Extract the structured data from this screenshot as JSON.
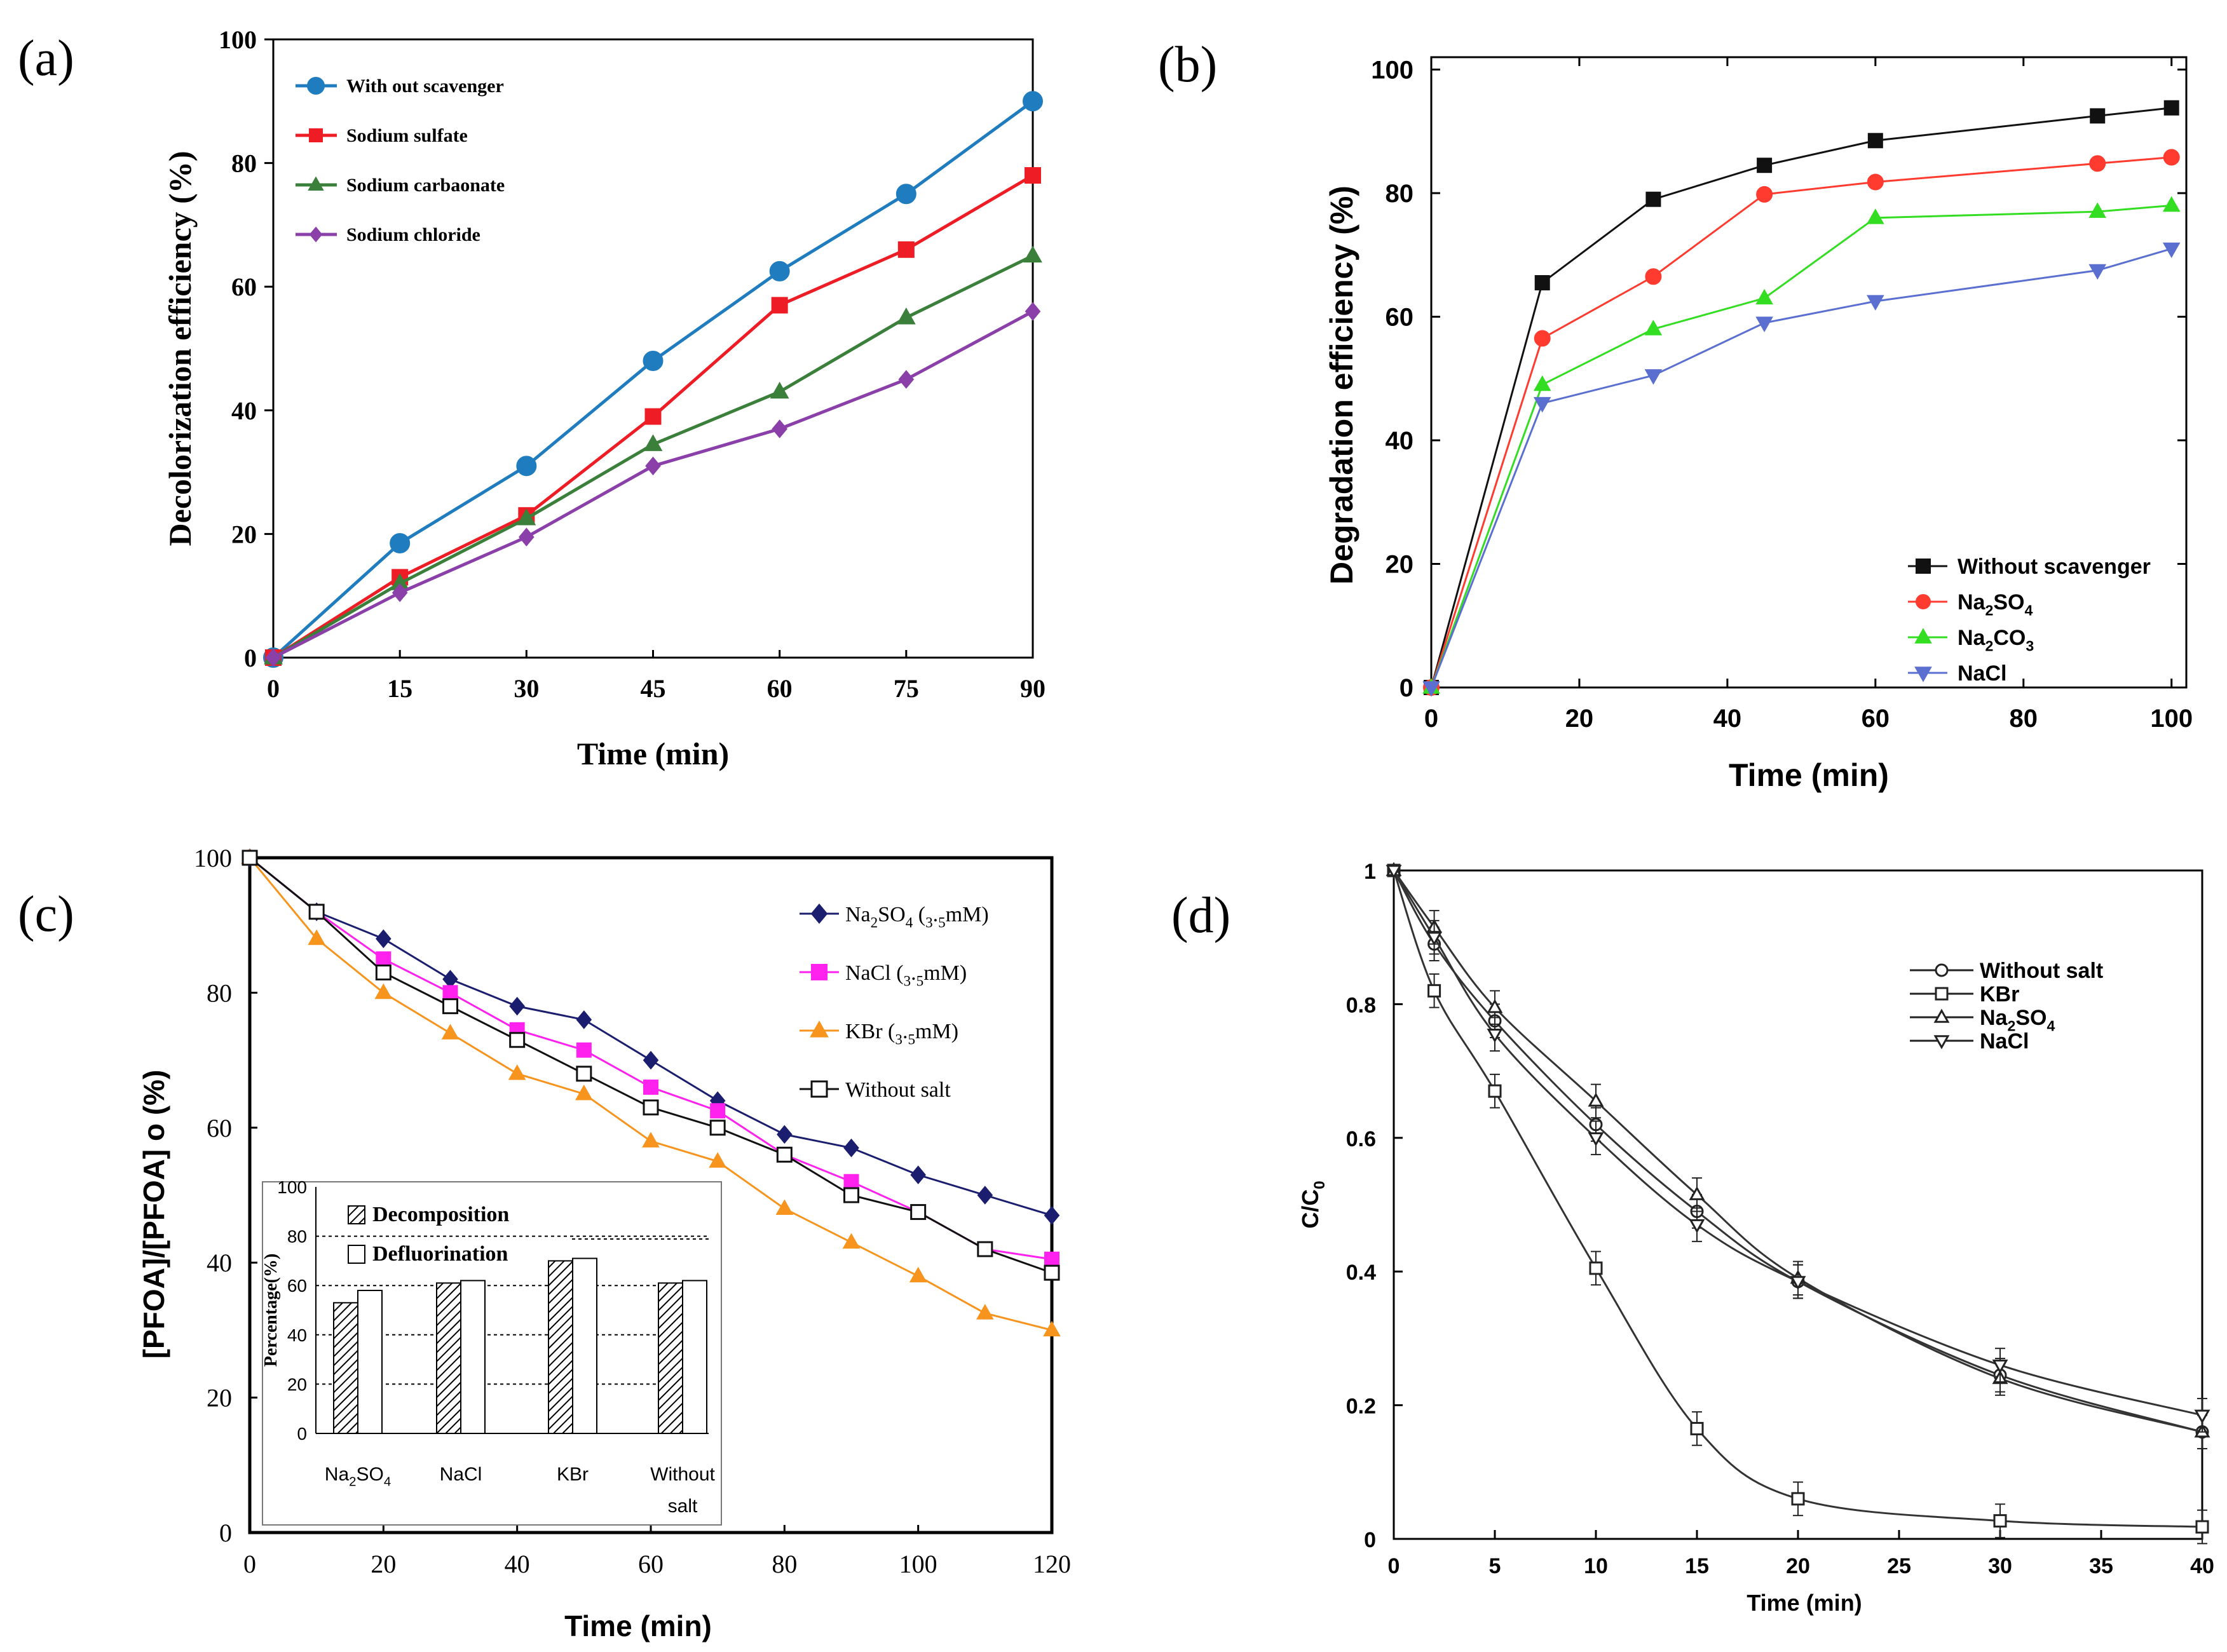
{
  "colors": {
    "a_blue": "#1f7dbf",
    "a_red": "#ee1c24",
    "a_green": "#3a7f3a",
    "a_purple": "#8b3fa8",
    "b_black": "#111111",
    "b_red": "#ff3b30",
    "b_green": "#33dd22",
    "b_blue": "#5b6fd0",
    "c_navy": "#1b1e6e",
    "c_magenta": "#ff22ee",
    "c_orange": "#f7941d",
    "c_black": "#111111",
    "axis": "#000000"
  },
  "chart_data": [
    {
      "panel": "(a)",
      "type": "line",
      "xlabel": "Time (min)",
      "ylabel": "Decolorization efficiency (%)",
      "x": [
        0,
        15,
        30,
        45,
        60,
        75,
        90
      ],
      "xticks": [
        "0",
        "15",
        "30",
        "45",
        "60",
        "75",
        "90"
      ],
      "yticks": [
        "0",
        "20",
        "40",
        "60",
        "80",
        "100"
      ],
      "xlim": [
        0,
        90
      ],
      "ylim": [
        0,
        100
      ],
      "series": [
        {
          "name": "With out scavenger",
          "marker": "circle",
          "values": [
            0,
            18.5,
            31,
            48,
            62.5,
            75,
            90
          ]
        },
        {
          "name": "Sodium sulfate",
          "marker": "square",
          "values": [
            0,
            13,
            23,
            39,
            57,
            66,
            78
          ]
        },
        {
          "name": "Sodium carbaonate",
          "marker": "triangle",
          "values": [
            0,
            12,
            22.5,
            34.5,
            43,
            55,
            65
          ]
        },
        {
          "name": "Sodium chloride",
          "marker": "diamond",
          "values": [
            0,
            10.5,
            19.5,
            31,
            37,
            45,
            56
          ]
        }
      ]
    },
    {
      "panel": "(b)",
      "type": "line",
      "xlabel": "Time (min)",
      "ylabel": "Degradation efficiency (%)",
      "x": [
        0,
        15,
        30,
        45,
        60,
        90,
        100
      ],
      "xticks": [
        "0",
        "20",
        "40",
        "60",
        "80",
        "100"
      ],
      "yticks": [
        "0",
        "20",
        "40",
        "60",
        "80",
        "100"
      ],
      "xlim": [
        0,
        102
      ],
      "ylim": [
        0,
        102
      ],
      "series": [
        {
          "name": "Without scavenger",
          "marker": "square",
          "values": [
            0,
            65.5,
            79,
            84.5,
            88.5,
            92.5,
            93.8
          ]
        },
        {
          "name": "Na2SO4",
          "marker": "circle",
          "values": [
            0,
            56.5,
            66.5,
            79.8,
            81.8,
            84.8,
            85.8
          ]
        },
        {
          "name": "Na2CO3",
          "marker": "triangle",
          "values": [
            0,
            49,
            58,
            63,
            76,
            77,
            78
          ]
        },
        {
          "name": "NaCl",
          "marker": "triangle-down",
          "values": [
            0,
            46,
            50.5,
            59,
            62.5,
            67.5,
            71
          ]
        }
      ]
    },
    {
      "panel": "(c)",
      "type": "line",
      "xlabel": "Time (min)",
      "ylabel": "[PFOA]/[PFOA] o (%)",
      "x": [
        0,
        10,
        20,
        30,
        40,
        50,
        60,
        70,
        80,
        90,
        100,
        110,
        120
      ],
      "xticks": [
        "0",
        "20",
        "40",
        "60",
        "80",
        "100",
        "120"
      ],
      "yticks": [
        "0",
        "20",
        "40",
        "60",
        "80",
        "100"
      ],
      "xlim": [
        0,
        120
      ],
      "ylim": [
        0,
        100
      ],
      "series": [
        {
          "name": "Na2SO4 (3.5mM)",
          "marker": "diamond",
          "values": [
            100,
            92,
            88,
            82,
            78,
            76,
            70,
            64,
            59,
            57,
            53,
            50,
            47
          ]
        },
        {
          "name": "NaCl (3.5mM)",
          "marker": "square",
          "values": [
            100,
            92,
            85,
            80,
            74.5,
            71.5,
            66,
            62.5,
            56,
            52,
            47.5,
            42,
            40.5
          ]
        },
        {
          "name": "KBr (3.5mM)",
          "marker": "triangle",
          "values": [
            100,
            88,
            80,
            74,
            68,
            65,
            58,
            55,
            48,
            43,
            38,
            32.5,
            30
          ]
        },
        {
          "name": "Without salt",
          "marker": "open-square",
          "values": [
            100,
            92,
            83,
            78,
            73,
            68,
            63,
            60,
            56,
            50,
            47.5,
            42,
            38.5
          ]
        }
      ],
      "inset": {
        "type": "bar",
        "ylabel": "Percentage(%)",
        "yticks": [
          "0",
          "20",
          "40",
          "60",
          "80",
          "100"
        ],
        "ylim": [
          0,
          100
        ],
        "categories": [
          "Na2SO4",
          "NaCl",
          "KBr",
          "Without\nsalt"
        ],
        "series": [
          {
            "name": "Decomposition",
            "values": [
              53,
              61,
              70,
              61
            ]
          },
          {
            "name": "Defluorination",
            "values": [
              58,
              62,
              71,
              62
            ]
          }
        ],
        "gridlines": [
          20,
          40,
          60,
          80
        ]
      }
    },
    {
      "panel": "(d)",
      "type": "line",
      "xlabel": "Time (min)",
      "ylabel": "C/C0",
      "x": [
        0,
        2,
        5,
        10,
        15,
        20,
        30,
        40
      ],
      "xticks": [
        "0",
        "5",
        "10",
        "15",
        "20",
        "25",
        "30",
        "35",
        "40"
      ],
      "yticks": [
        "0",
        "0.2",
        "0.4",
        "0.6",
        "0.8",
        "1"
      ],
      "xlim": [
        0,
        40
      ],
      "ylim": [
        0,
        1
      ],
      "series": [
        {
          "name": "Without salt",
          "marker": "open-circle",
          "values": [
            1,
            0.89,
            0.775,
            0.62,
            0.49,
            0.385,
            0.245,
            0.16
          ]
        },
        {
          "name": "KBr",
          "marker": "open-square",
          "values": [
            1,
            0.82,
            0.67,
            0.405,
            0.165,
            0.06,
            0.027,
            0.018
          ]
        },
        {
          "name": "Na2SO4",
          "marker": "open-triangle",
          "values": [
            1,
            0.915,
            0.795,
            0.655,
            0.515,
            0.39,
            0.24,
            0.16
          ]
        },
        {
          "name": "NaCl",
          "marker": "open-triangle-down",
          "values": [
            1,
            0.9,
            0.755,
            0.6,
            0.47,
            0.385,
            0.26,
            0.185
          ]
        }
      ],
      "error_bar": 0.025
    }
  ]
}
